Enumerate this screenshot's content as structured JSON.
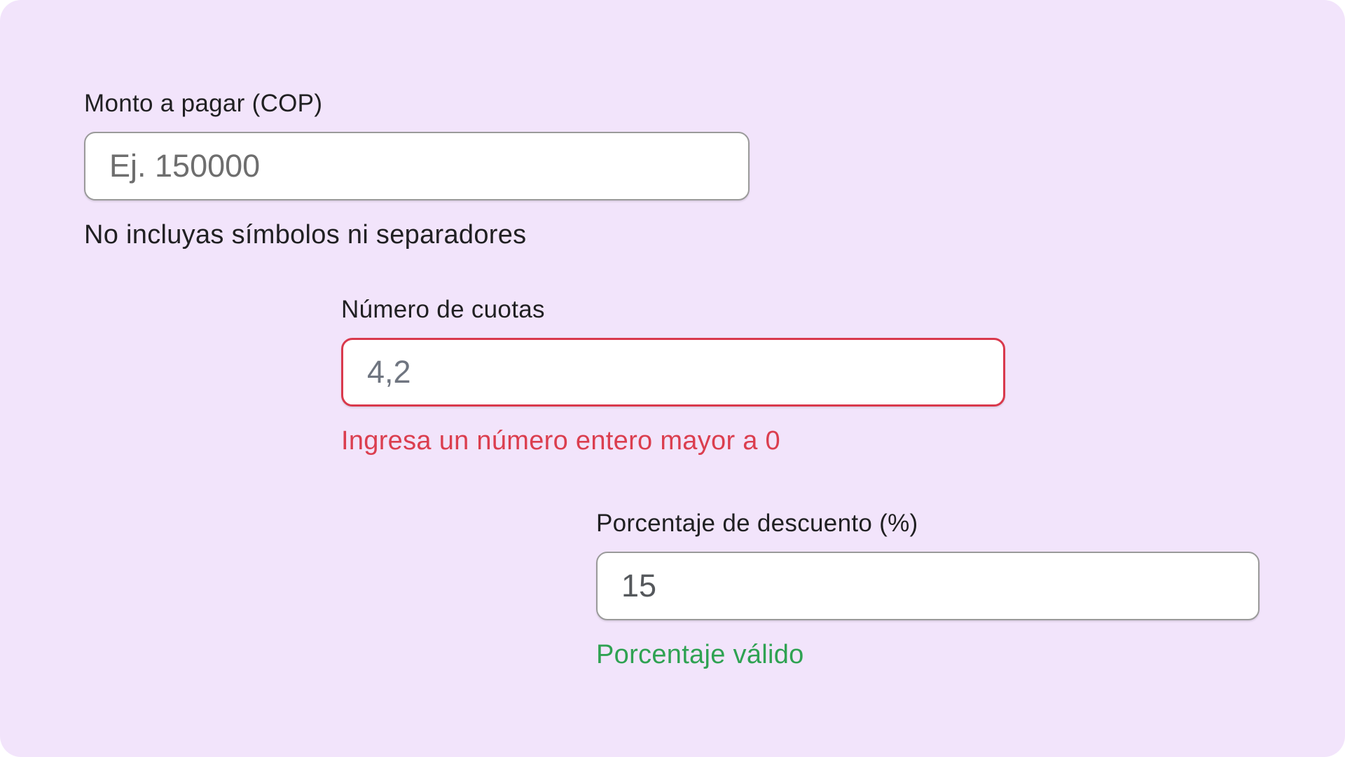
{
  "page": {
    "background_color": "#F2E4FB",
    "outer_background_color": "#FFFFFF"
  },
  "colors": {
    "error": "#DB3E4F",
    "error_border": "#D9394C",
    "success": "#2FA252",
    "default_border": "#9A9A9A",
    "label_text": "#202022",
    "input_value_text": "#55585C",
    "placeholder_text": "#6E6E6E"
  },
  "form": {
    "fields": [
      {
        "id": "amount",
        "label": "Monto a pagar (COP)",
        "placeholder": "Ej. 150000",
        "value": "",
        "message": "No incluyas símbolos ni separadores",
        "state": "default"
      },
      {
        "id": "installments",
        "label": "Número de cuotas",
        "placeholder": "",
        "value": "4,2",
        "message": "Ingresa un número entero mayor a 0",
        "state": "error"
      },
      {
        "id": "discount",
        "label": "Porcentaje de descuento (%)",
        "placeholder": "",
        "value": "15",
        "message": "Porcentaje válido",
        "state": "valid"
      }
    ]
  }
}
